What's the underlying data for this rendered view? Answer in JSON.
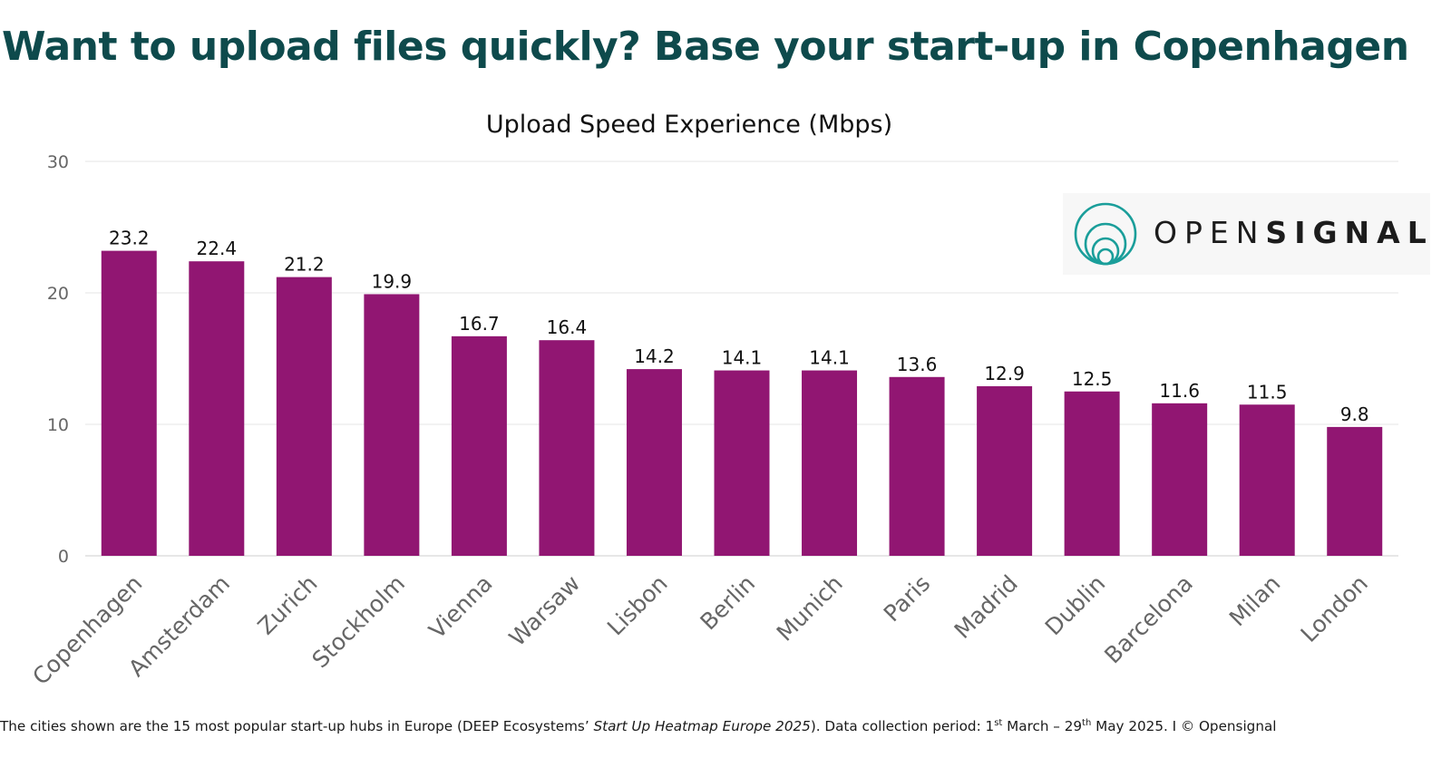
{
  "headline": "Want to upload files quickly? Base your start-up in Copenhagen",
  "logo": {
    "part1": "OPEN",
    "part2": "SIGNAL",
    "color": "#1a9e9a"
  },
  "colors": {
    "bar": "#911672",
    "headline": "#0e4a4c",
    "grid": "#e6e6e6"
  },
  "chart_data": {
    "type": "bar",
    "title": "Upload Speed Experience (Mbps)",
    "xlabel": "",
    "ylabel": "",
    "ylim": [
      0,
      30
    ],
    "yticks": [
      0,
      10,
      20,
      30
    ],
    "grid": true,
    "data_labels": true,
    "categories": [
      "Copenhagen",
      "Amsterdam",
      "Zurich",
      "Stockholm",
      "Vienna",
      "Warsaw",
      "Lisbon",
      "Berlin",
      "Munich",
      "Paris",
      "Madrid",
      "Dublin",
      "Barcelona",
      "Milan",
      "London"
    ],
    "values": [
      23.2,
      22.4,
      21.2,
      19.9,
      16.7,
      16.4,
      14.2,
      14.1,
      14.1,
      13.6,
      12.9,
      12.5,
      11.6,
      11.5,
      9.8
    ]
  },
  "footnote": {
    "part1": "The cities shown are the 15 most popular start-up hubs in Europe (DEEP Ecosystems’ ",
    "italic": "Start Up Heatmap Europe 2025",
    "part2": "). Data collection period: 1",
    "sup1": "st",
    "part3": " March – 29",
    "sup2": "th",
    "part4": " May 2025. I © Opensignal"
  }
}
